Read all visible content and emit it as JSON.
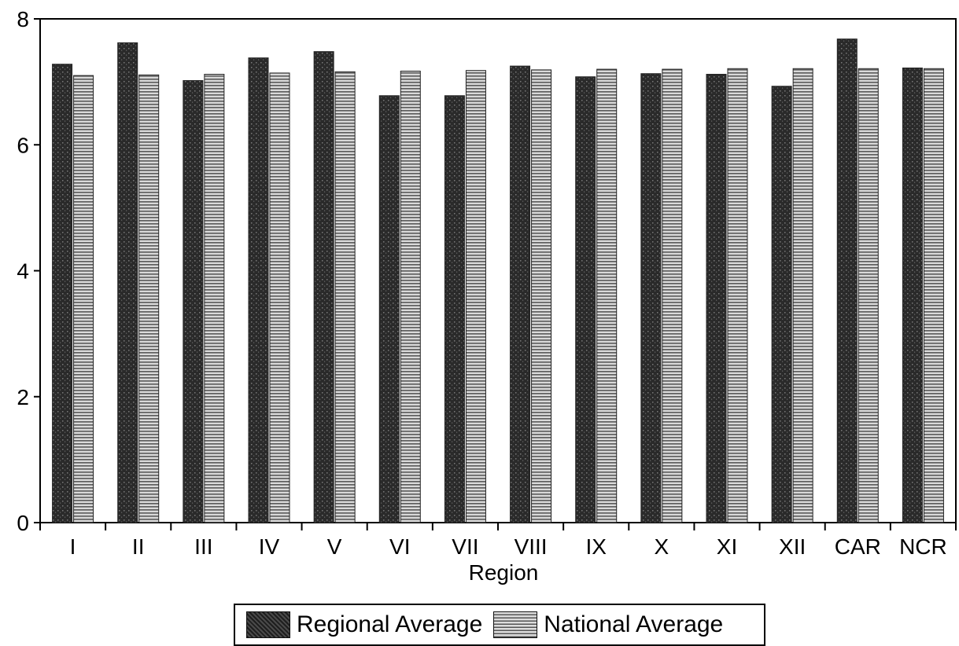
{
  "chart_data": {
    "type": "bar",
    "xlabel": "Region",
    "ylabel": "",
    "ylim": [
      0,
      8
    ],
    "yticks": [
      "0",
      "2",
      "4",
      "6",
      "8"
    ],
    "categories": [
      "I",
      "II",
      "III",
      "IV",
      "V",
      "VI",
      "VII",
      "VIII",
      "IX",
      "X",
      "XI",
      "XII",
      "CAR",
      "NCR"
    ],
    "series": [
      {
        "name": "Regional Average",
        "color": "#2b2b2b",
        "values": [
          7.28,
          7.62,
          7.02,
          7.38,
          7.48,
          6.78,
          6.78,
          7.25,
          7.08,
          7.13,
          7.12,
          6.93,
          7.68,
          7.22
        ]
      },
      {
        "name": "National Average",
        "color": "#9a9a9a",
        "values": [
          7.1,
          7.11,
          7.12,
          7.14,
          7.16,
          7.17,
          7.18,
          7.19,
          7.2,
          7.2,
          7.21,
          7.21,
          7.21,
          7.21
        ]
      }
    ],
    "grid": false,
    "legend_position": "bottom"
  }
}
